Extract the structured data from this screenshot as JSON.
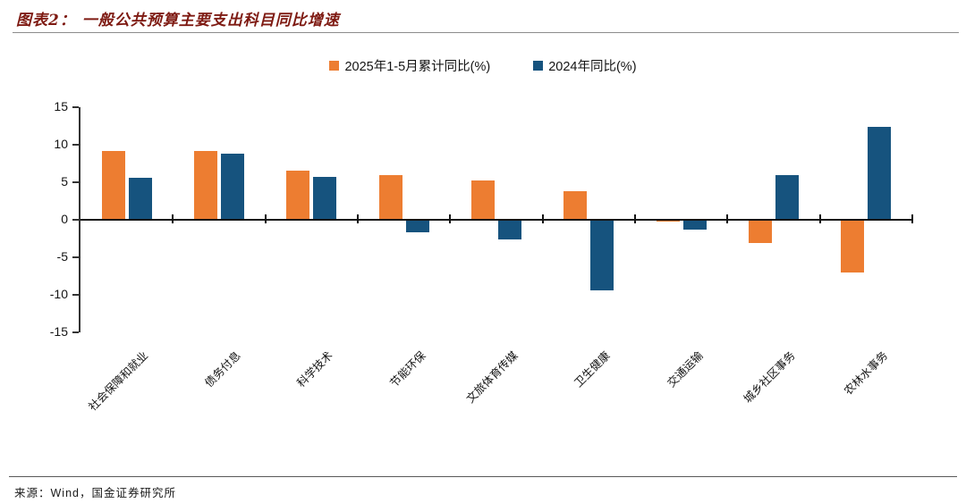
{
  "header": {
    "title": "图表2： 一般公共预算主要支出科目同比增速"
  },
  "chart_data": {
    "type": "bar",
    "title": "一般公共预算主要支出科目同比增速",
    "categories": [
      "社会保障和就业",
      "债务付息",
      "科学技术",
      "节能环保",
      "文旅体育传媒",
      "卫生健康",
      "交通运输",
      "城乡社区事务",
      "农林水事务"
    ],
    "series": [
      {
        "name": "2025年1-5月累计同比(%)",
        "color": "#ED7D31",
        "values": [
          9.2,
          9.2,
          6.5,
          6.0,
          5.2,
          3.8,
          -0.2,
          -3.1,
          -7.0
        ]
      },
      {
        "name": "2024年同比(%)",
        "color": "#16537E",
        "values": [
          5.6,
          8.8,
          5.7,
          -1.7,
          -2.6,
          -9.4,
          -1.3,
          5.9,
          12.4
        ]
      }
    ],
    "xlabel": "",
    "ylabel": "",
    "ylim": [
      -15,
      15
    ],
    "yticks": [
      15,
      10,
      5,
      0,
      -5,
      -10,
      -15
    ],
    "grid": false,
    "legend_position": "top-center"
  },
  "footer": {
    "source": "来源：Wind，国金证券研究所"
  }
}
